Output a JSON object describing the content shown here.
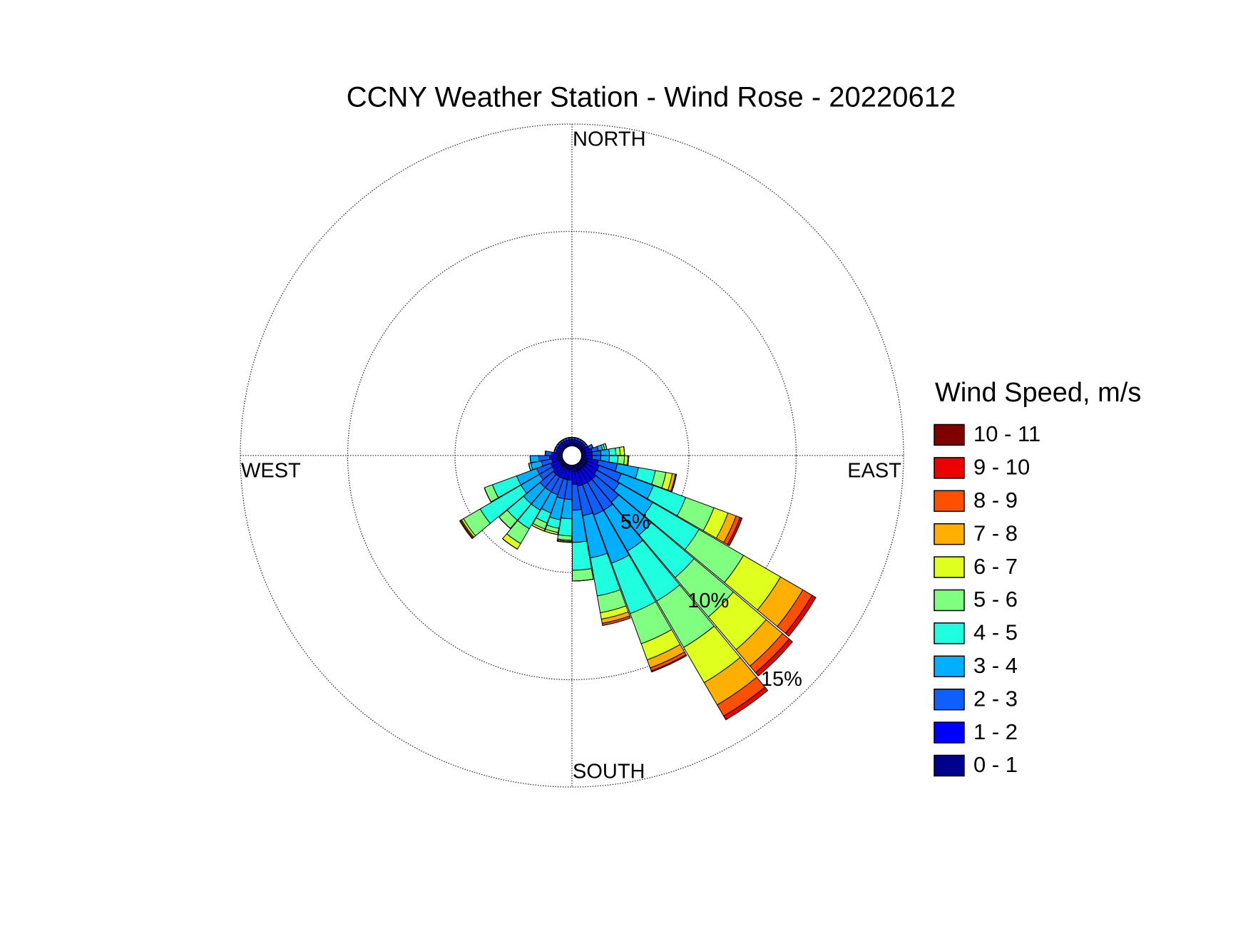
{
  "chart_data": {
    "type": "wind_rose",
    "title": "CCNY Weather Station - Wind Rose - 20220612",
    "direction_labels": [
      "NORTH",
      "EAST",
      "SOUTH",
      "WEST"
    ],
    "legend_title": "Wind Speed, m/s",
    "x": [
      5,
      15,
      25,
      35,
      45,
      55,
      65,
      75,
      85,
      95,
      105,
      115,
      125,
      135,
      145,
      155,
      165,
      175,
      185,
      195,
      205,
      215,
      225,
      235,
      245,
      255,
      265,
      275,
      285,
      295,
      305,
      315,
      325,
      335,
      345,
      355
    ],
    "rlim": [
      0,
      15
    ],
    "rticks": [
      {
        "value": 5,
        "label": "5%"
      },
      {
        "value": 10,
        "label": "10%"
      },
      {
        "value": 15,
        "label": "15%"
      }
    ],
    "series": [
      {
        "name": "0 - 1",
        "color": "#00008f",
        "values": [
          0.15,
          0.15,
          0.15,
          0.15,
          0.15,
          0.15,
          0.2,
          0.2,
          0.2,
          0.2,
          0.3,
          0.3,
          0.3,
          0.3,
          0.3,
          0.3,
          0.3,
          0.3,
          0.2,
          0.2,
          0.2,
          0.2,
          0.2,
          0.2,
          0.2,
          0.2,
          0.2,
          0.2,
          0.15,
          0.15,
          0.15,
          0.15,
          0.15,
          0.15,
          0.15,
          0.15
        ]
      },
      {
        "name": "1 - 2",
        "color": "#0000ff",
        "values": [
          0.15,
          0.15,
          0.15,
          0.15,
          0.15,
          0.15,
          0.2,
          0.3,
          0.3,
          0.3,
          0.5,
          0.6,
          0.6,
          0.7,
          0.7,
          0.7,
          0.7,
          0.6,
          0.5,
          0.5,
          0.5,
          0.5,
          0.5,
          0.4,
          0.4,
          0.3,
          0.4,
          0.3,
          0.15,
          0.15,
          0.15,
          0.15,
          0.15,
          0.15,
          0.15,
          0.15
        ]
      },
      {
        "name": "2 - 3",
        "color": "#0f5fff",
        "values": [
          0.1,
          0.1,
          0.1,
          0.1,
          0.1,
          0.1,
          0.2,
          0.3,
          0.4,
          0.4,
          0.9,
          1.1,
          1.2,
          1.4,
          1.5,
          1.5,
          1.4,
          1.2,
          0.9,
          0.9,
          0.8,
          0.8,
          0.8,
          0.7,
          0.7,
          0.5,
          0.5,
          0.3,
          0.1,
          0.1,
          0.1,
          0.1,
          0.1,
          0.1,
          0.1,
          0.1
        ]
      },
      {
        "name": "3 - 4",
        "color": "#00afff",
        "values": [
          0,
          0,
          0,
          0,
          0,
          0,
          0,
          0.2,
          0.4,
          0.4,
          1.0,
          1.6,
          1.8,
          2.0,
          2.2,
          2.4,
          2.0,
          1.5,
          0.9,
          1.0,
          0.9,
          1.0,
          1.0,
          1.0,
          1.0,
          0.5,
          0.4,
          0,
          0,
          0,
          0,
          0,
          0,
          0,
          0,
          0
        ]
      },
      {
        "name": "4 - 5",
        "color": "#1fffdf",
        "values": [
          0,
          0,
          0,
          0,
          0,
          0,
          0,
          0.1,
          0.3,
          0.4,
          0.8,
          1.6,
          2.5,
          2.6,
          2.7,
          2.5,
          1.8,
          1.3,
          0.8,
          0.4,
          0.5,
          1.0,
          1.0,
          2.2,
          1.2,
          0.1,
          0,
          0,
          0,
          0,
          0,
          0,
          0,
          0,
          0,
          0
        ]
      },
      {
        "name": "5 - 6",
        "color": "#80ff80",
        "values": [
          0,
          0,
          0,
          0,
          0,
          0,
          0,
          0.1,
          0.2,
          0.3,
          0.5,
          1.4,
          2.4,
          2.4,
          2.5,
          1.5,
          0.8,
          0.5,
          0.2,
          0.2,
          0.3,
          0.8,
          0.5,
          0.9,
          0.4,
          0,
          0,
          0,
          0,
          0,
          0,
          0,
          0,
          0,
          0,
          0
        ]
      },
      {
        "name": "6 - 7",
        "color": "#dfff1f",
        "values": [
          0,
          0,
          0,
          0,
          0,
          0,
          0,
          0,
          0.2,
          0.15,
          0.3,
          0.7,
          2.0,
          2.0,
          1.9,
          0.8,
          0.3,
          0,
          0.05,
          0.1,
          0.1,
          0.3,
          0,
          0.1,
          0,
          0,
          0,
          0,
          0,
          0,
          0,
          0,
          0,
          0,
          0,
          0
        ]
      },
      {
        "name": "7 - 8",
        "color": "#ffaf00",
        "values": [
          0,
          0,
          0,
          0,
          0,
          0,
          0,
          0,
          0,
          0.05,
          0.15,
          0.4,
          1.2,
          1.0,
          1.2,
          0.4,
          0.2,
          0,
          0.05,
          0,
          0,
          0,
          0,
          0.05,
          0,
          0,
          0,
          0,
          0,
          0,
          0,
          0,
          0,
          0,
          0,
          0
        ]
      },
      {
        "name": "8 - 9",
        "color": "#ff5000",
        "values": [
          0,
          0,
          0,
          0,
          0,
          0,
          0,
          0,
          0,
          0,
          0.05,
          0.2,
          0.5,
          0.4,
          0.6,
          0.15,
          0.1,
          0,
          0,
          0,
          0,
          0,
          0,
          0.05,
          0,
          0,
          0,
          0,
          0,
          0,
          0,
          0,
          0,
          0,
          0,
          0
        ]
      },
      {
        "name": "9 - 10",
        "color": "#ef0000",
        "values": [
          0,
          0,
          0,
          0,
          0,
          0,
          0,
          0,
          0,
          0,
          0,
          0.1,
          0.2,
          0.2,
          0.2,
          0.05,
          0,
          0,
          0,
          0,
          0,
          0,
          0,
          0,
          0,
          0,
          0,
          0,
          0,
          0,
          0,
          0,
          0,
          0,
          0,
          0
        ]
      },
      {
        "name": "10 - 11",
        "color": "#800000",
        "values": [
          0,
          0,
          0,
          0,
          0,
          0,
          0,
          0,
          0,
          0,
          0,
          0,
          0,
          0,
          0,
          0,
          0,
          0,
          0,
          0,
          0,
          0,
          0,
          0,
          0,
          0,
          0,
          0,
          0,
          0,
          0,
          0,
          0,
          0,
          0,
          0
        ]
      }
    ]
  }
}
